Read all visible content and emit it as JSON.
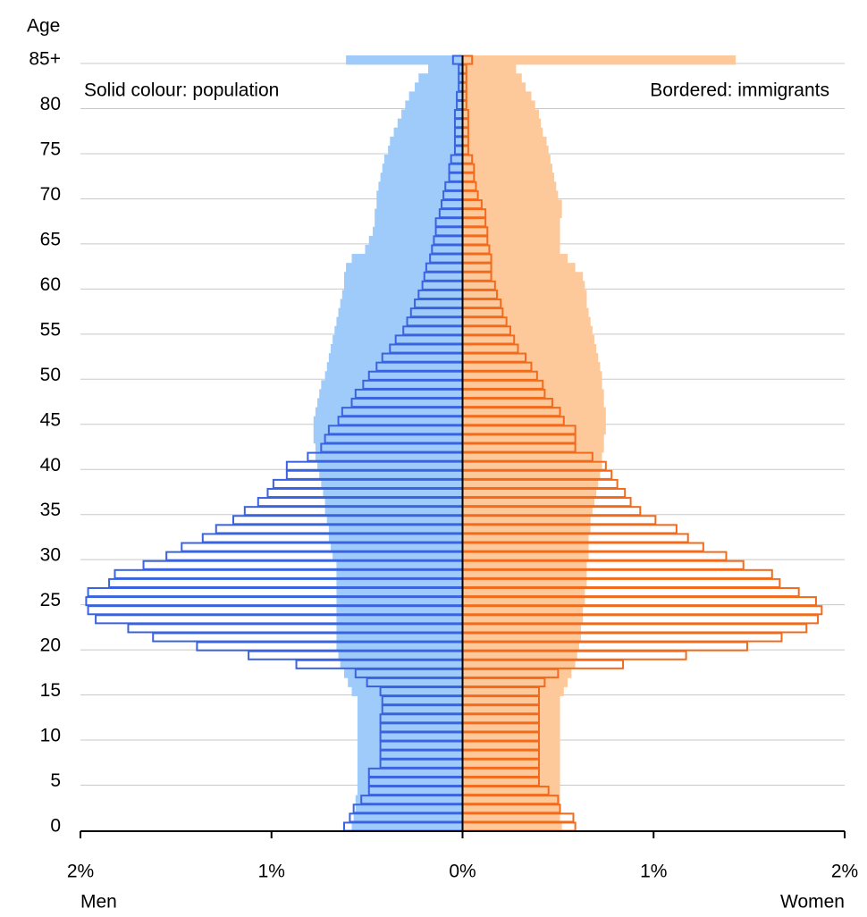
{
  "chart_data": {
    "type": "population-pyramid",
    "y_label": "Age",
    "left_label": "Men",
    "right_label": "Women",
    "annotations": [
      "Solid colour: population",
      "Bordered: immigrants"
    ],
    "categories": [
      "0",
      null,
      null,
      null,
      null,
      "5",
      null,
      null,
      null,
      null,
      "10",
      null,
      null,
      null,
      null,
      "15",
      null,
      null,
      null,
      null,
      "20",
      null,
      null,
      null,
      null,
      "25",
      null,
      null,
      null,
      null,
      "30",
      null,
      null,
      null,
      null,
      "35",
      null,
      null,
      null,
      null,
      "40",
      null,
      null,
      null,
      null,
      "45",
      null,
      null,
      null,
      null,
      "50",
      null,
      null,
      null,
      null,
      "55",
      null,
      null,
      null,
      null,
      "60",
      null,
      null,
      null,
      null,
      "65",
      null,
      null,
      null,
      null,
      "70",
      null,
      null,
      null,
      null,
      "75",
      null,
      null,
      null,
      null,
      "80",
      null,
      null,
      null,
      null,
      "85+"
    ],
    "xlim": [
      -2,
      2
    ],
    "xticks": [
      {
        "value": -2,
        "label": "2%"
      },
      {
        "value": -1,
        "label": "1%"
      },
      {
        "value": 0,
        "label": "0%"
      },
      {
        "value": 1,
        "label": "1%"
      },
      {
        "value": 2,
        "label": "2%"
      }
    ],
    "grid": true,
    "series": [
      {
        "side": "left",
        "style": "solid",
        "color": "#9fcbfa",
        "values": [
          0.58,
          0.57,
          0.56,
          0.56,
          0.55,
          0.55,
          0.55,
          0.55,
          0.55,
          0.55,
          0.55,
          0.55,
          0.55,
          0.55,
          0.55,
          0.58,
          0.6,
          0.62,
          0.64,
          0.65,
          0.66,
          0.66,
          0.66,
          0.66,
          0.66,
          0.66,
          0.66,
          0.66,
          0.66,
          0.66,
          0.68,
          0.69,
          0.7,
          0.7,
          0.71,
          0.72,
          0.72,
          0.73,
          0.74,
          0.75,
          0.76,
          0.77,
          0.77,
          0.78,
          0.78,
          0.78,
          0.77,
          0.76,
          0.75,
          0.74,
          0.72,
          0.71,
          0.7,
          0.69,
          0.68,
          0.67,
          0.66,
          0.65,
          0.64,
          0.63,
          0.62,
          0.62,
          0.61,
          0.58,
          0.51,
          0.49,
          0.47,
          0.46,
          0.46,
          0.45,
          0.45,
          0.44,
          0.43,
          0.42,
          0.41,
          0.39,
          0.38,
          0.36,
          0.34,
          0.32,
          0.3,
          0.28,
          0.25,
          0.23,
          0.18,
          0.61
        ]
      },
      {
        "side": "right",
        "style": "solid",
        "color": "#fdc89a",
        "values": [
          0.52,
          0.51,
          0.51,
          0.51,
          0.51,
          0.51,
          0.51,
          0.51,
          0.51,
          0.51,
          0.51,
          0.51,
          0.51,
          0.51,
          0.51,
          0.53,
          0.55,
          0.57,
          0.59,
          0.6,
          0.61,
          0.62,
          0.62,
          0.63,
          0.63,
          0.64,
          0.64,
          0.65,
          0.65,
          0.65,
          0.66,
          0.66,
          0.66,
          0.67,
          0.67,
          0.68,
          0.69,
          0.7,
          0.71,
          0.72,
          0.73,
          0.73,
          0.74,
          0.74,
          0.75,
          0.75,
          0.75,
          0.74,
          0.74,
          0.73,
          0.73,
          0.72,
          0.71,
          0.7,
          0.69,
          0.68,
          0.67,
          0.66,
          0.65,
          0.65,
          0.64,
          0.63,
          0.59,
          0.55,
          0.51,
          0.51,
          0.51,
          0.51,
          0.52,
          0.52,
          0.5,
          0.49,
          0.48,
          0.47,
          0.46,
          0.45,
          0.44,
          0.42,
          0.41,
          0.4,
          0.38,
          0.36,
          0.33,
          0.31,
          0.28,
          1.43
        ]
      },
      {
        "side": "left",
        "style": "bordered",
        "color": "#3a63e0",
        "values": [
          0.62,
          0.59,
          0.57,
          0.53,
          0.49,
          0.49,
          0.49,
          0.43,
          0.43,
          0.43,
          0.43,
          0.43,
          0.43,
          0.42,
          0.42,
          0.43,
          0.5,
          0.56,
          0.87,
          1.12,
          1.39,
          1.62,
          1.75,
          1.92,
          1.96,
          1.97,
          1.96,
          1.85,
          1.82,
          1.67,
          1.55,
          1.47,
          1.36,
          1.29,
          1.2,
          1.14,
          1.07,
          1.02,
          0.99,
          0.92,
          0.92,
          0.81,
          0.74,
          0.72,
          0.7,
          0.65,
          0.63,
          0.58,
          0.56,
          0.52,
          0.49,
          0.45,
          0.42,
          0.38,
          0.35,
          0.31,
          0.29,
          0.27,
          0.25,
          0.23,
          0.21,
          0.2,
          0.19,
          0.17,
          0.16,
          0.15,
          0.14,
          0.14,
          0.12,
          0.11,
          0.1,
          0.09,
          0.07,
          0.07,
          0.06,
          0.04,
          0.04,
          0.04,
          0.04,
          0.04,
          0.03,
          0.03,
          0.02,
          0.02,
          0.02,
          0.05
        ]
      },
      {
        "side": "right",
        "style": "bordered",
        "color": "#f26b1d",
        "values": [
          0.59,
          0.58,
          0.51,
          0.5,
          0.45,
          0.4,
          0.4,
          0.4,
          0.4,
          0.4,
          0.4,
          0.4,
          0.4,
          0.4,
          0.4,
          0.4,
          0.43,
          0.5,
          0.84,
          1.17,
          1.49,
          1.67,
          1.8,
          1.86,
          1.88,
          1.85,
          1.76,
          1.66,
          1.62,
          1.47,
          1.38,
          1.26,
          1.18,
          1.12,
          1.01,
          0.93,
          0.88,
          0.85,
          0.81,
          0.78,
          0.75,
          0.68,
          0.59,
          0.59,
          0.59,
          0.53,
          0.51,
          0.47,
          0.43,
          0.42,
          0.39,
          0.36,
          0.33,
          0.29,
          0.27,
          0.25,
          0.23,
          0.21,
          0.2,
          0.18,
          0.17,
          0.15,
          0.15,
          0.15,
          0.14,
          0.13,
          0.13,
          0.12,
          0.12,
          0.1,
          0.08,
          0.07,
          0.06,
          0.06,
          0.05,
          0.03,
          0.03,
          0.03,
          0.03,
          0.03,
          0.02,
          0.02,
          0.02,
          0.02,
          0.02,
          0.05
        ]
      }
    ]
  }
}
